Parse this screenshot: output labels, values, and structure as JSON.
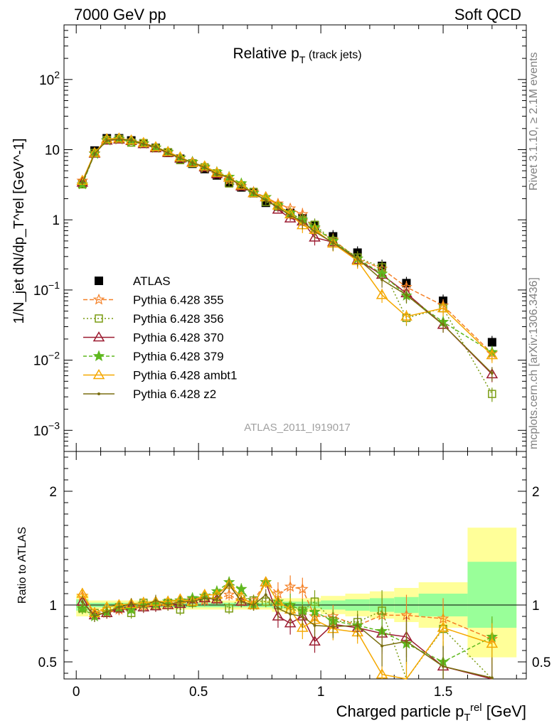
{
  "header": {
    "left": "7000 GeV pp",
    "right": "Soft QCD"
  },
  "side": {
    "rivet": "Rivet 3.1.10, ≥ 2.1M events",
    "mcplots": "mcplots.cern.ch [arXiv:1306.3436]"
  },
  "chart_data": [
    {
      "type": "line",
      "panel": "main",
      "title": "Relative p",
      "title_sub": "T",
      "title_suffix": "(track jets)",
      "ylabel": "1/N_jet dN/dp_T^rel [GeV^-1]",
      "yscale": "log",
      "ylim": [
        0.0005,
        600
      ],
      "xlim": [
        -0.05,
        1.84
      ],
      "yticks": [
        {
          "v": 0.001,
          "base": "10",
          "exp": "−3"
        },
        {
          "v": 0.01,
          "base": "10",
          "exp": "−2"
        },
        {
          "v": 0.1,
          "base": "10",
          "exp": "−1"
        },
        {
          "v": 1,
          "base": "1",
          "exp": ""
        },
        {
          "v": 10,
          "base": "10",
          "exp": ""
        },
        {
          "v": 100,
          "base": "10",
          "exp": "2"
        }
      ],
      "watermark": "ATLAS_2011_I919017",
      "x": [
        0.025,
        0.075,
        0.125,
        0.175,
        0.225,
        0.275,
        0.325,
        0.375,
        0.425,
        0.475,
        0.525,
        0.575,
        0.625,
        0.675,
        0.725,
        0.775,
        0.825,
        0.875,
        0.925,
        0.975,
        1.05,
        1.15,
        1.25,
        1.35,
        1.5,
        1.7
      ],
      "series": [
        {
          "name": "ATLAS",
          "color": "#000000",
          "marker": "square",
          "dash": "none",
          "values": [
            3.3,
            9.7,
            14.5,
            14.5,
            13.5,
            12.2,
            10.6,
            9.0,
            7.4,
            6.3,
            5.3,
            4.3,
            3.4,
            2.9,
            2.4,
            1.75,
            1.55,
            1.25,
            1.05,
            0.83,
            0.58,
            0.34,
            0.22,
            0.125,
            0.07,
            0.018
          ]
        },
        {
          "name": "Pythia 6.428 355",
          "color": "#f58026",
          "marker": "star-open",
          "dash": "6,3",
          "values": [
            3.6,
            8.9,
            13.5,
            13.9,
            12.9,
            12.1,
            10.6,
            9.1,
            7.6,
            6.6,
            5.5,
            4.5,
            3.7,
            3.0,
            2.5,
            2.1,
            1.7,
            1.45,
            1.2,
            0.75,
            0.52,
            0.28,
            0.2,
            0.11,
            0.06,
            0.0125
          ]
        },
        {
          "name": "Pythia 6.428 356",
          "color": "#7a9c12",
          "marker": "square-open",
          "dash": "2,3",
          "values": [
            3.2,
            9.0,
            13.8,
            14.2,
            12.6,
            12.4,
            10.5,
            9.2,
            7.1,
            6.4,
            5.6,
            4.6,
            3.3,
            3.1,
            2.5,
            1.8,
            1.55,
            1.2,
            1.0,
            0.85,
            0.5,
            0.29,
            0.21,
            0.04,
            0.055,
            0.0033
          ]
        },
        {
          "name": "Pythia 6.428 370",
          "color": "#9b1b30",
          "marker": "triangle-open",
          "dash": "none",
          "values": [
            3.4,
            8.8,
            13.5,
            14.0,
            13.3,
            12.0,
            10.5,
            9.0,
            7.5,
            6.6,
            5.6,
            4.5,
            4.0,
            3.0,
            2.4,
            2.1,
            1.4,
            1.05,
            0.95,
            0.56,
            0.48,
            0.27,
            0.165,
            0.09,
            0.032,
            0.0063
          ]
        },
        {
          "name": "Pythia 6.428 379",
          "color": "#5fb81f",
          "marker": "star",
          "dash": "5,3",
          "values": [
            3.2,
            8.7,
            13.6,
            14.2,
            13.0,
            12.3,
            10.7,
            9.3,
            7.7,
            6.7,
            5.7,
            4.8,
            4.1,
            3.3,
            2.4,
            2.1,
            1.6,
            1.25,
            1.0,
            0.78,
            0.5,
            0.28,
            0.17,
            0.083,
            0.035,
            0.013
          ]
        },
        {
          "name": "Pythia 6.428 ambt1",
          "color": "#f5a800",
          "marker": "triangle-open",
          "dash": "none",
          "values": [
            3.6,
            9.0,
            14.2,
            14.5,
            13.6,
            12.5,
            10.9,
            9.3,
            7.8,
            6.5,
            5.8,
            4.7,
            4.0,
            3.1,
            2.4,
            2.1,
            1.6,
            1.2,
            0.84,
            0.72,
            0.46,
            0.26,
            0.085,
            0.042,
            0.055,
            0.0118
          ]
        },
        {
          "name": "Pythia 6.428 z2",
          "color": "#7a6e10",
          "marker": "dot",
          "dash": "none",
          "values": [
            3.4,
            8.7,
            13.6,
            14.2,
            13.6,
            12.1,
            11.0,
            9.0,
            7.6,
            6.5,
            5.6,
            4.5,
            4.0,
            3.0,
            2.4,
            1.9,
            1.5,
            1.15,
            0.95,
            0.68,
            0.47,
            0.28,
            0.14,
            0.085,
            0.032,
            0.0065
          ]
        }
      ]
    },
    {
      "type": "line",
      "panel": "ratio",
      "ylabel": "Ratio to ATLAS",
      "ylim": [
        0.35,
        2.35
      ],
      "yticks": [
        0.5,
        1,
        2
      ],
      "xlabel": "Charged particle p",
      "xlabel_sub": "T",
      "xlabel_sup": "rel",
      "xlabel_unit": "[GeV]",
      "xticks": [
        0,
        0.5,
        1,
        1.5
      ],
      "reference": 1,
      "bands": [
        {
          "x0": 0.0,
          "x1": 0.05,
          "yellow": [
            0.9,
            1.1
          ],
          "green": [
            0.95,
            1.05
          ]
        },
        {
          "x0": 0.05,
          "x1": 0.8,
          "yellow": [
            0.96,
            1.04
          ],
          "green": [
            0.98,
            1.02
          ]
        },
        {
          "x0": 0.8,
          "x1": 1.0,
          "yellow": [
            0.94,
            1.06
          ],
          "green": [
            0.97,
            1.03
          ]
        },
        {
          "x0": 1.0,
          "x1": 1.1,
          "yellow": [
            0.92,
            1.08
          ],
          "green": [
            0.96,
            1.04
          ]
        },
        {
          "x0": 1.1,
          "x1": 1.2,
          "yellow": [
            0.9,
            1.1
          ],
          "green": [
            0.95,
            1.05
          ]
        },
        {
          "x0": 1.2,
          "x1": 1.3,
          "yellow": [
            0.88,
            1.12
          ],
          "green": [
            0.94,
            1.06
          ]
        },
        {
          "x0": 1.3,
          "x1": 1.4,
          "yellow": [
            0.85,
            1.15
          ],
          "green": [
            0.93,
            1.07
          ]
        },
        {
          "x0": 1.4,
          "x1": 1.6,
          "yellow": [
            0.8,
            1.2
          ],
          "green": [
            0.9,
            1.1
          ]
        },
        {
          "x0": 1.6,
          "x1": 1.8,
          "yellow": [
            0.54,
            1.68
          ],
          "green": [
            0.8,
            1.38
          ]
        }
      ],
      "series": [
        {
          "name": "Pythia 6.428 355",
          "color": "#f58026",
          "marker": "star-open",
          "dash": "6,3",
          "values": [
            1.08,
            0.92,
            0.93,
            0.96,
            0.96,
            0.99,
            1.0,
            1.01,
            1.03,
            1.05,
            1.04,
            1.05,
            1.09,
            1.03,
            1.04,
            1.2,
            1.1,
            1.16,
            1.14,
            0.9,
            0.9,
            0.82,
            0.91,
            0.91,
            0.88,
            0.7
          ]
        },
        {
          "name": "Pythia 6.428 356",
          "color": "#7a9c12",
          "marker": "square-open",
          "dash": "2,3",
          "values": [
            0.97,
            0.93,
            0.95,
            0.98,
            0.93,
            1.02,
            0.99,
            1.02,
            0.96,
            1.02,
            1.06,
            1.07,
            0.97,
            1.07,
            1.04,
            1.03,
            1.0,
            0.96,
            0.95,
            1.03,
            0.86,
            0.85,
            0.95,
            0.32,
            0.79,
            0.18
          ]
        },
        {
          "name": "Pythia 6.428 370",
          "color": "#9b1b30",
          "marker": "triangle-open",
          "dash": "none",
          "values": [
            1.03,
            0.91,
            0.93,
            0.97,
            0.99,
            0.98,
            0.99,
            1.0,
            1.01,
            1.05,
            1.06,
            1.05,
            1.18,
            1.03,
            1.0,
            1.2,
            0.9,
            0.84,
            0.9,
            0.68,
            0.83,
            0.8,
            0.75,
            0.72,
            0.46,
            0.35
          ]
        },
        {
          "name": "Pythia 6.428 379",
          "color": "#5fb81f",
          "marker": "star",
          "dash": "5,3",
          "values": [
            0.97,
            0.9,
            0.94,
            0.98,
            0.96,
            1.01,
            1.01,
            1.03,
            1.04,
            1.06,
            1.08,
            1.12,
            1.2,
            1.14,
            1.0,
            1.2,
            1.03,
            1.0,
            0.95,
            0.94,
            0.86,
            0.82,
            0.77,
            0.66,
            0.5,
            0.72
          ]
        },
        {
          "name": "Pythia 6.428 ambt1",
          "color": "#f5a800",
          "marker": "triangle-open",
          "dash": "none",
          "values": [
            1.1,
            0.93,
            0.98,
            1.0,
            1.01,
            1.02,
            1.03,
            1.03,
            1.05,
            1.03,
            1.09,
            1.09,
            1.18,
            1.07,
            1.0,
            1.2,
            1.03,
            0.96,
            0.8,
            0.87,
            0.79,
            0.76,
            0.39,
            0.34,
            0.8,
            0.66
          ]
        },
        {
          "name": "Pythia 6.428 z2",
          "color": "#7a6e10",
          "marker": "dot",
          "dash": "none",
          "values": [
            1.03,
            0.9,
            0.94,
            0.98,
            1.01,
            0.99,
            1.04,
            1.0,
            1.03,
            1.03,
            1.06,
            1.05,
            1.18,
            1.03,
            1.0,
            1.09,
            0.97,
            0.92,
            0.9,
            0.82,
            0.81,
            0.82,
            0.64,
            0.68,
            0.46,
            0.36
          ]
        }
      ]
    }
  ]
}
